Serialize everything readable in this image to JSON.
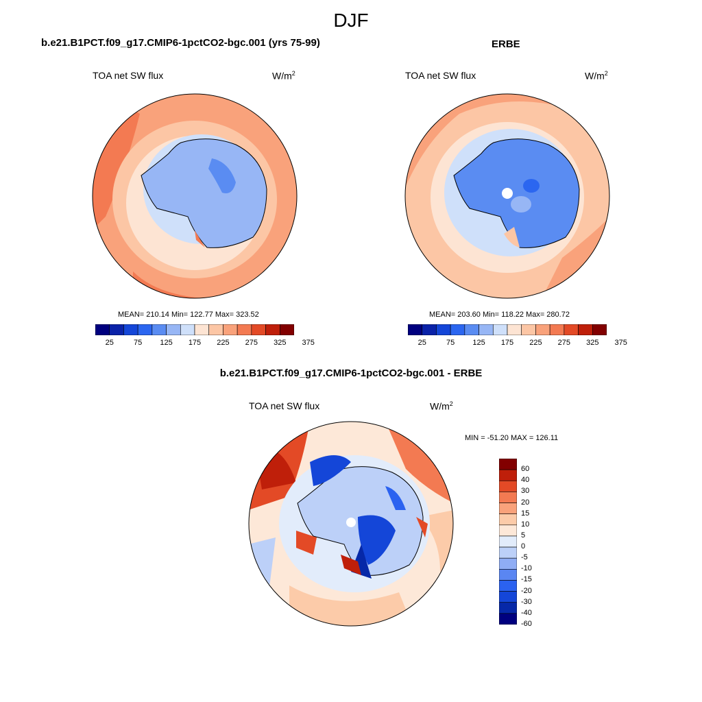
{
  "figure": {
    "title": "DJF"
  },
  "colors": {
    "abs_scale": [
      "#00007f",
      "#0a22a8",
      "#1446d8",
      "#2b66f0",
      "#5a8cf2",
      "#97b6f5",
      "#cfe0fa",
      "#fde4d3",
      "#fcc6a5",
      "#f9a27b",
      "#f37a52",
      "#e34a26",
      "#bf1f0a",
      "#820000"
    ],
    "diff_scale": [
      "#00007f",
      "#0628a8",
      "#1446d8",
      "#2b62f0",
      "#5a86f2",
      "#8fadf5",
      "#bcd0f8",
      "#e2ecfb",
      "#fde8d8",
      "#fccba9",
      "#f9a27b",
      "#f37a52",
      "#e34a26",
      "#bf1f0a",
      "#820000"
    ],
    "coastline": "#000000"
  },
  "panels": {
    "model": {
      "title": "b.e21.B1PCT.f09_g17.CMIP6-1pctCO2-bgc.001 (yrs 75-99)",
      "variable": "TOA net SW flux",
      "units": "W/m",
      "units_sup": "2",
      "stats": "MEAN= 210.14  Min= 122.77  Max= 323.52",
      "colorbar_ticks": [
        "25",
        "75",
        "125",
        "175",
        "225",
        "275",
        "325",
        "375"
      ]
    },
    "obs": {
      "title": "ERBE",
      "variable": "TOA net SW flux",
      "units": "W/m",
      "units_sup": "2",
      "stats": "MEAN= 203.60  Min= 118.22  Max= 280.72",
      "colorbar_ticks": [
        "25",
        "75",
        "125",
        "175",
        "225",
        "275",
        "325",
        "375"
      ]
    },
    "diff": {
      "title": "b.e21.B1PCT.f09_g17.CMIP6-1pctCO2-bgc.001 - ERBE",
      "variable": "TOA net SW flux",
      "units": "W/m",
      "units_sup": "2",
      "stats": "MIN = -51.20 MAX = 126.11",
      "colorbar_ticks": [
        "60",
        "40",
        "30",
        "20",
        "15",
        "10",
        "5",
        "0",
        "-5",
        "-10",
        "-15",
        "-20",
        "-30",
        "-40",
        "-60"
      ]
    }
  },
  "chart_data": [
    {
      "type": "heatmap",
      "title": "b.e21.B1PCT.f09_g17.CMIP6-1pctCO2-bgc.001 (yrs 75-99)",
      "projection": "south polar stereographic",
      "variable": "TOA net SW flux",
      "units": "W/m2",
      "mean": 210.14,
      "min": 122.77,
      "max": 323.52,
      "contour_levels": [
        25,
        50,
        75,
        100,
        125,
        150,
        175,
        200,
        225,
        250,
        275,
        300,
        325,
        350,
        375
      ],
      "colorbar_labels": [
        25,
        75,
        125,
        175,
        225,
        275,
        325,
        375
      ]
    },
    {
      "type": "heatmap",
      "title": "ERBE",
      "projection": "south polar stereographic",
      "variable": "TOA net SW flux",
      "units": "W/m2",
      "mean": 203.6,
      "min": 118.22,
      "max": 280.72,
      "contour_levels": [
        25,
        50,
        75,
        100,
        125,
        150,
        175,
        200,
        225,
        250,
        275,
        300,
        325,
        350,
        375
      ],
      "colorbar_labels": [
        25,
        75,
        125,
        175,
        225,
        275,
        325,
        375
      ]
    },
    {
      "type": "heatmap",
      "title": "b.e21.B1PCT.f09_g17.CMIP6-1pctCO2-bgc.001 - ERBE",
      "projection": "south polar stereographic",
      "variable": "TOA net SW flux",
      "units": "W/m2",
      "min": -51.2,
      "max": 126.11,
      "contour_levels": [
        -60,
        -40,
        -30,
        -20,
        -15,
        -10,
        -5,
        0,
        5,
        10,
        15,
        20,
        30,
        40,
        60
      ],
      "colorbar_labels": [
        60,
        40,
        30,
        20,
        15,
        10,
        5,
        0,
        -5,
        -10,
        -15,
        -20,
        -30,
        -40,
        -60
      ]
    }
  ]
}
